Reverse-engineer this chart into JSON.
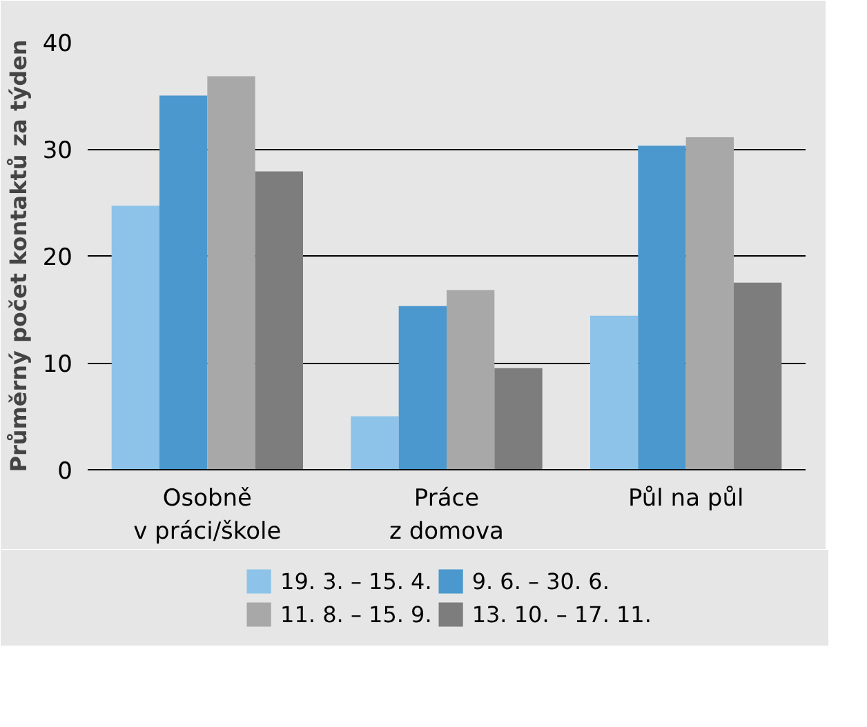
{
  "chart_data": {
    "type": "bar",
    "ylabel": "Průměrný počet kontaktů za týden",
    "categories": [
      "Osobně\nv práci/škole",
      "Práce\nz domova",
      "Půl na půl"
    ],
    "series": [
      {
        "name": "19. 3. – 15. 4.",
        "color": "#8dc3e8",
        "values": [
          24.7,
          5.0,
          14.4
        ]
      },
      {
        "name": "9. 6. – 30. 6.",
        "color": "#4a98cd",
        "values": [
          35.0,
          15.3,
          30.3
        ]
      },
      {
        "name": "11. 8. – 15. 9.",
        "color": "#a8a8a8",
        "values": [
          36.8,
          16.8,
          31.1
        ]
      },
      {
        "name": "13. 10. – 17. 11.",
        "color": "#7d7d7d",
        "values": [
          27.9,
          9.5,
          17.5
        ]
      }
    ],
    "ylim": [
      0,
      40
    ],
    "yticks": [
      0,
      10,
      20,
      30,
      40
    ],
    "grid": "y",
    "legend": "bottom"
  }
}
